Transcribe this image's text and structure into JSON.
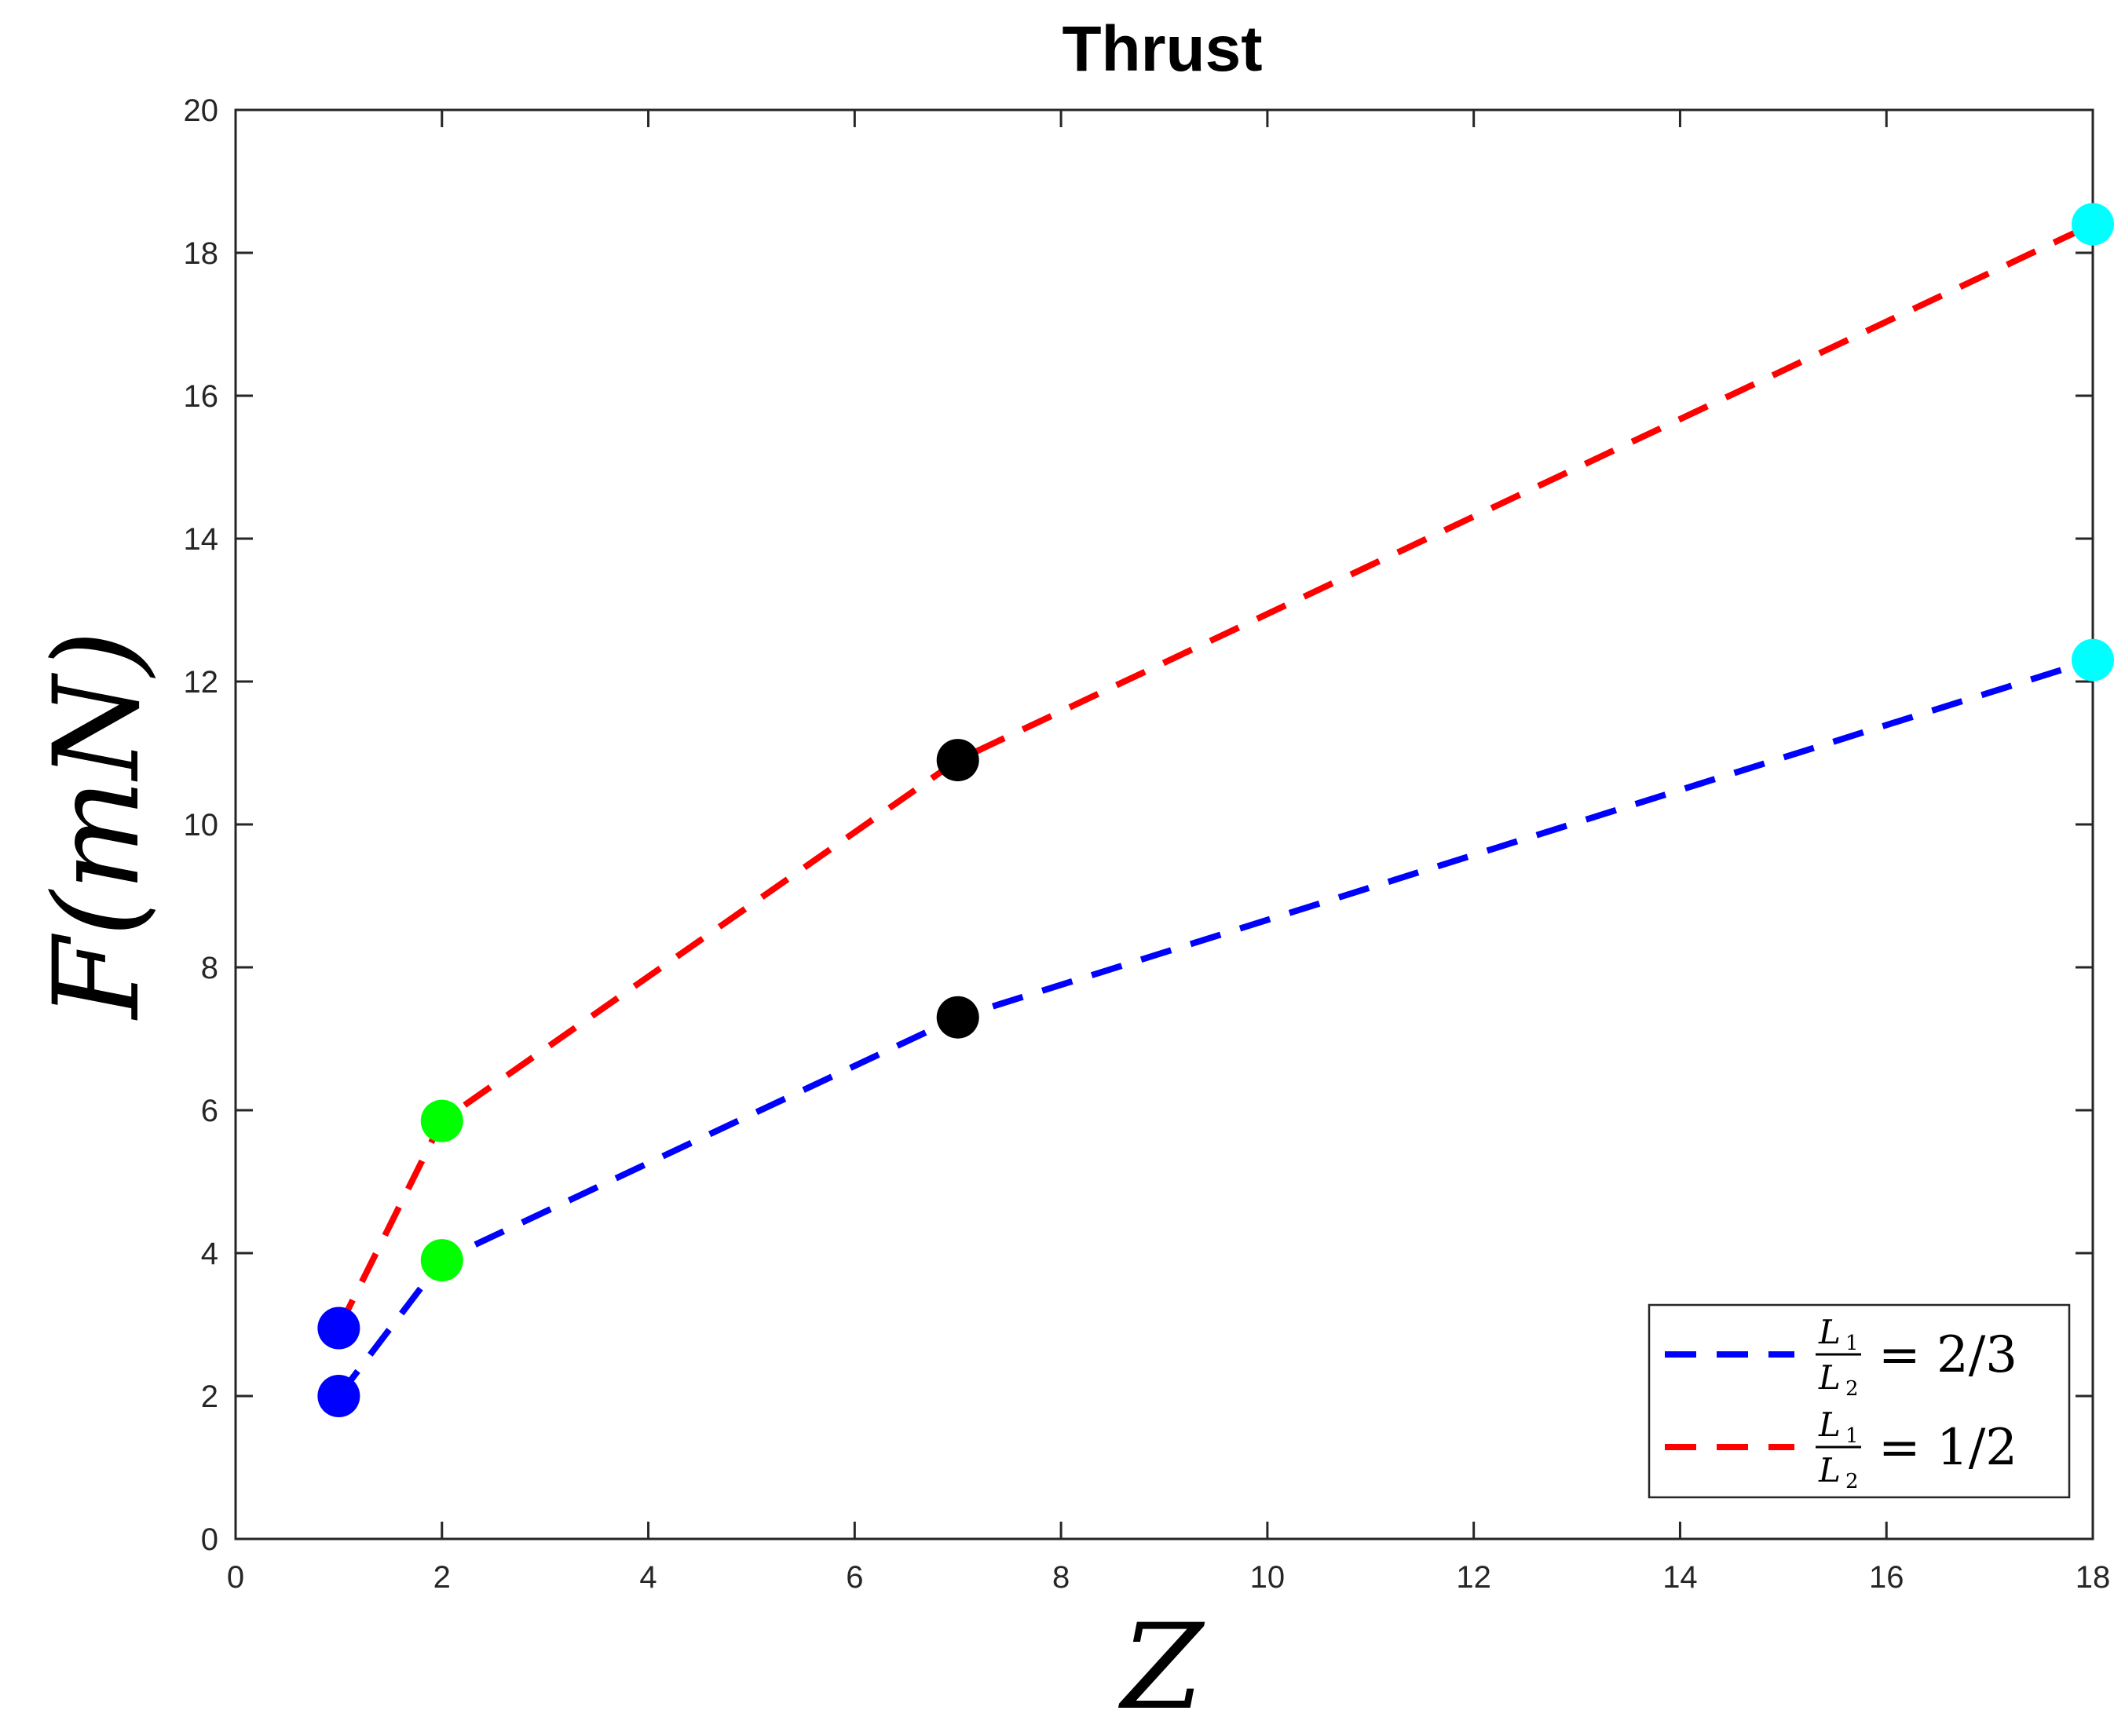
{
  "chart_data": {
    "type": "line",
    "title": "Thrust",
    "xlabel": "Z",
    "ylabel": "F(mN)",
    "xlim": [
      0,
      18
    ],
    "ylim": [
      0,
      20
    ],
    "xticks": [
      "0",
      "2",
      "4",
      "6",
      "8",
      "10",
      "12",
      "14",
      "16",
      "18"
    ],
    "yticks": [
      "0",
      "2",
      "4",
      "6",
      "8",
      "10",
      "12",
      "14",
      "16",
      "18",
      "20"
    ],
    "x": [
      1,
      2,
      7,
      18
    ],
    "point_colors": [
      "#0000ff",
      "#00ff00",
      "#000000",
      "#00ffff"
    ],
    "series": [
      {
        "legend": {
          "num": "L",
          "num_sub": "1",
          "den": "L",
          "den_sub": "2",
          "value": "= 2/3"
        },
        "color": "#0000ff",
        "line_style": "dashed",
        "values": [
          2.0,
          3.9,
          7.3,
          12.3
        ]
      },
      {
        "legend": {
          "num": "L",
          "num_sub": "1",
          "den": "L",
          "den_sub": "2",
          "value": "= 1/2"
        },
        "color": "#ff0000",
        "line_style": "dashed",
        "values": [
          2.95,
          5.85,
          10.9,
          18.4
        ]
      }
    ],
    "legend_position": "bottom-right",
    "grid": false,
    "box": true
  }
}
